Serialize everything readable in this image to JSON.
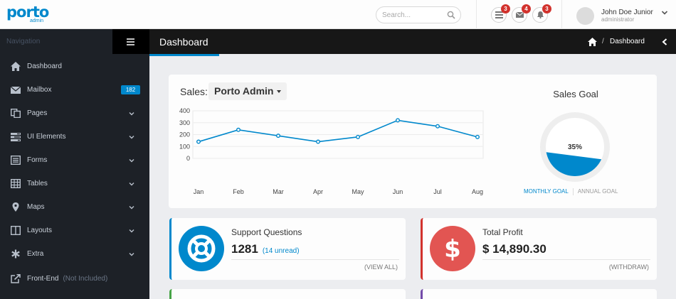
{
  "brand": {
    "logo": "porto",
    "tagline": "admin"
  },
  "header": {
    "search_placeholder": "Search...",
    "notifications": [
      {
        "icon": "tasks-icon",
        "count": "3"
      },
      {
        "icon": "envelope-icon",
        "count": "4"
      },
      {
        "icon": "bell-icon",
        "count": "3"
      }
    ],
    "user": {
      "name": "John Doe Junior",
      "role": "administrator"
    }
  },
  "sidebar": {
    "heading": "Navigation",
    "items": [
      {
        "label": "Dashboard",
        "icon": "home-icon"
      },
      {
        "label": "Mailbox",
        "icon": "envelope-icon",
        "badge": "182"
      },
      {
        "label": "Pages",
        "icon": "copy-icon",
        "expandable": true
      },
      {
        "label": "UI Elements",
        "icon": "tasks-icon",
        "expandable": true
      },
      {
        "label": "Forms",
        "icon": "list-alt-icon",
        "expandable": true
      },
      {
        "label": "Tables",
        "icon": "table-icon",
        "expandable": true
      },
      {
        "label": "Maps",
        "icon": "map-marker-icon",
        "expandable": true
      },
      {
        "label": "Layouts",
        "icon": "columns-icon",
        "expandable": true
      },
      {
        "label": "Extra",
        "icon": "asterisk-icon",
        "expandable": true
      },
      {
        "label": "Front-End",
        "icon": "external-link-icon",
        "note": "(Not Included)"
      }
    ]
  },
  "page": {
    "title": "Dashboard",
    "breadcrumb": "Dashboard"
  },
  "sales": {
    "label": "Sales:",
    "selected": "Porto Admin"
  },
  "chart_data": {
    "type": "line",
    "categories": [
      "Jan",
      "Feb",
      "Mar",
      "Apr",
      "May",
      "Jun",
      "Jul",
      "Aug"
    ],
    "series": [
      {
        "values": [
          140,
          240,
          190,
          140,
          180,
          320,
          270,
          180
        ]
      }
    ],
    "yticks": [
      0,
      100,
      200,
      300,
      400
    ],
    "ylim": [
      0,
      400
    ],
    "grid": true,
    "color": "#0088cc"
  },
  "goal": {
    "title": "Sales Goal",
    "percent_label": "35%",
    "percent": 35,
    "tab_active": "MONTHLY GOAL",
    "tab_other": "ANNUAL GOAL"
  },
  "widgets": [
    {
      "title": "Support Questions",
      "value": "1281",
      "extra": "(14 unread)",
      "action": "(VIEW ALL)",
      "color": "#0088cc",
      "icon": "life-ring-icon"
    },
    {
      "title": "Total Profit",
      "value": "$ 14,890.30",
      "action": "(WITHDRAW)",
      "color": "#d2322d",
      "icon": "dollar-icon"
    }
  ]
}
